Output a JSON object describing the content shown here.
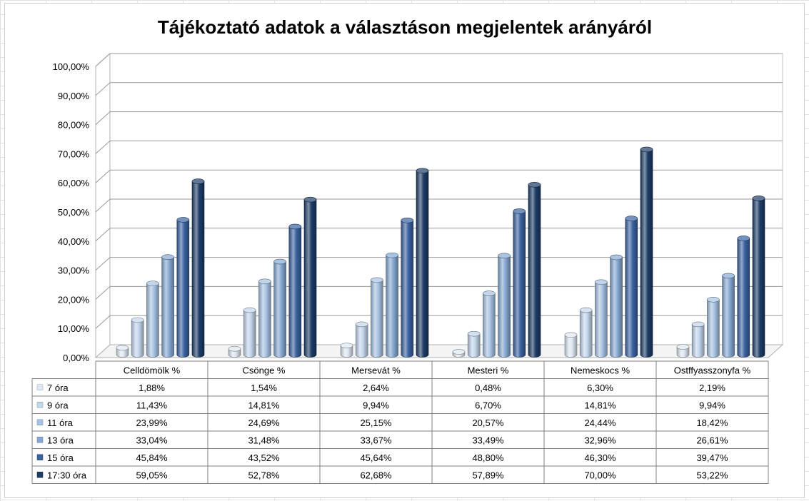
{
  "chart_data": {
    "type": "bar",
    "title": "Tájékoztató adatok a választáson megjelentek arányáról",
    "categories": [
      "Celldömölk %",
      "Csönge %",
      "Mersevát %",
      "Mesteri %",
      "Nemeskocs %",
      "Ostffyasszonyfa %"
    ],
    "series": [
      {
        "name": "7 óra",
        "color": "#dfe8f3",
        "values": [
          1.88,
          1.54,
          2.64,
          0.48,
          6.3,
          2.19
        ],
        "labels": [
          "1,88%",
          "1,54%",
          "2,64%",
          "0,48%",
          "6,30%",
          "2,19%"
        ]
      },
      {
        "name": "9 óra",
        "color": "#c3d6ec",
        "values": [
          11.43,
          14.81,
          9.94,
          6.7,
          14.81,
          9.94
        ],
        "labels": [
          "11,43%",
          "14,81%",
          "9,94%",
          "6,70%",
          "14,81%",
          "9,94%"
        ]
      },
      {
        "name": "11 óra",
        "color": "#a7c3e3",
        "values": [
          23.99,
          24.69,
          25.15,
          20.57,
          24.44,
          18.42
        ],
        "labels": [
          "23,99%",
          "24,69%",
          "25,15%",
          "20,57%",
          "24,44%",
          "18,42%"
        ]
      },
      {
        "name": "13 óra",
        "color": "#86a9d3",
        "values": [
          33.04,
          31.48,
          33.67,
          33.49,
          32.96,
          26.61
        ],
        "labels": [
          "33,04%",
          "31,48%",
          "33,67%",
          "33,49%",
          "32,96%",
          "26,61%"
        ]
      },
      {
        "name": "15 óra",
        "color": "#3a62a0",
        "values": [
          45.84,
          43.52,
          45.64,
          48.8,
          46.3,
          39.47
        ],
        "labels": [
          "45,84%",
          "43,52%",
          "45,64%",
          "48,80%",
          "46,30%",
          "39,47%"
        ]
      },
      {
        "name": "17:30 óra",
        "color": "#1d3d68",
        "values": [
          59.05,
          52.78,
          62.68,
          57.89,
          70.0,
          53.22
        ],
        "labels": [
          "59,05%",
          "52,78%",
          "62,68%",
          "57,89%",
          "70,00%",
          "53,22%"
        ]
      }
    ],
    "yticks": [
      "0,00%",
      "10,00%",
      "20,00%",
      "30,00%",
      "40,00%",
      "50,00%",
      "60,00%",
      "70,00%",
      "80,00%",
      "90,00%",
      "100,00%"
    ],
    "ylim": [
      0,
      100
    ],
    "grid": true,
    "legend": "data-table",
    "style": "3d-cylinder"
  }
}
